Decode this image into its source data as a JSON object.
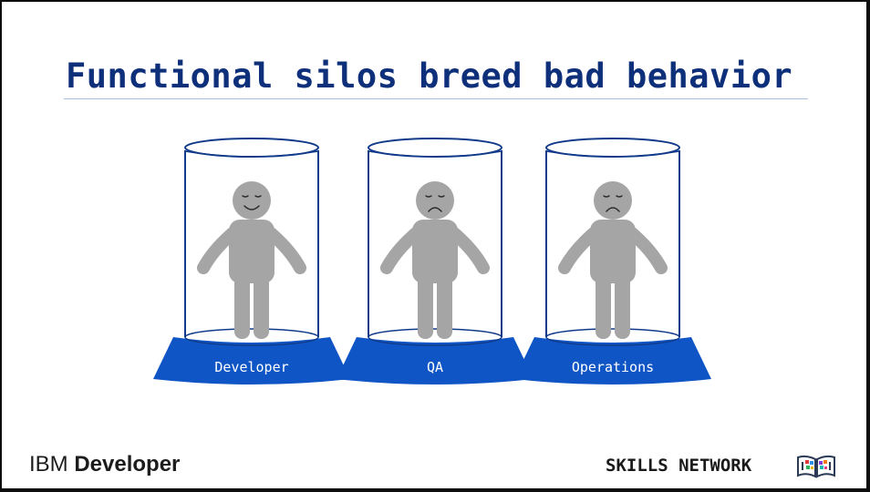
{
  "slide": {
    "title": "Functional silos breed bad behavior",
    "silos": [
      {
        "label": "Developer",
        "mood": "happy"
      },
      {
        "label": "QA",
        "mood": "sad"
      },
      {
        "label": "Operations",
        "mood": "sad"
      }
    ]
  },
  "footer": {
    "left_brand": "IBM",
    "left_product": "Developer",
    "right_brand": "SKILLS NETWORK"
  },
  "colors": {
    "title": "#0e2f7a",
    "pedestal": "#0f55c5",
    "jar_outline": "#123a8a",
    "figure": "#a5a5a5"
  },
  "icons": [
    "skills-network-book-icon"
  ]
}
